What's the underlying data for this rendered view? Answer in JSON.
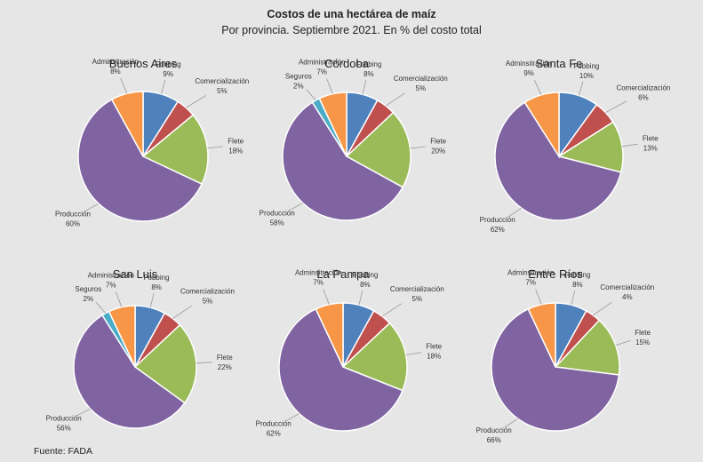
{
  "header": {
    "title": "Costos de una hectárea de maíz",
    "subtitle": "Por provincia. Septiembre 2021. En % del costo total"
  },
  "footer": {
    "source": "Fuente: FADA"
  },
  "colors": {
    "Fobbing": "#4F81BD",
    "Comercialización": "#C0504D",
    "Flete": "#9BBB59",
    "Producción": "#8064A2",
    "Seguros": "#4BACC6",
    "Administración": "#F79646"
  },
  "chart_data": [
    {
      "type": "pie",
      "title": "Buenos Aires",
      "slices": [
        {
          "key": "Fobbing",
          "label": "Fobbing",
          "value": 9
        },
        {
          "key": "Comercialización",
          "label": "Comercialización",
          "value": 5
        },
        {
          "key": "Flete",
          "label": "Flete",
          "value": 18
        },
        {
          "key": "Producción",
          "label": "Producción",
          "value": 60
        },
        {
          "key": "Administración",
          "label": "Adminsitración",
          "value": 8
        }
      ]
    },
    {
      "type": "pie",
      "title": "Córdoba",
      "slices": [
        {
          "key": "Fobbing",
          "label": "Fobbing",
          "value": 8
        },
        {
          "key": "Comercialización",
          "label": "Comercialización",
          "value": 5
        },
        {
          "key": "Flete",
          "label": "Flete",
          "value": 20
        },
        {
          "key": "Producción",
          "label": "Producción",
          "value": 58
        },
        {
          "key": "Seguros",
          "label": "Seguros",
          "value": 2
        },
        {
          "key": "Administración",
          "label": "Administración",
          "value": 7
        }
      ]
    },
    {
      "type": "pie",
      "title": "Santa Fe",
      "slices": [
        {
          "key": "Fobbing",
          "label": "Fobbing",
          "value": 10
        },
        {
          "key": "Comercialización",
          "label": "Comercialización",
          "value": 6
        },
        {
          "key": "Flete",
          "label": "Flete",
          "value": 13
        },
        {
          "key": "Producción",
          "label": "Producción",
          "value": 62
        },
        {
          "key": "Administración",
          "label": "Adminsitración",
          "value": 9
        }
      ]
    },
    {
      "type": "pie",
      "title": "San Luis",
      "slices": [
        {
          "key": "Fobbing",
          "label": "Fobbing",
          "value": 8
        },
        {
          "key": "Comercialización",
          "label": "Comercialización",
          "value": 5
        },
        {
          "key": "Flete",
          "label": "Flete",
          "value": 22
        },
        {
          "key": "Producción",
          "label": "Producción",
          "value": 56
        },
        {
          "key": "Seguros",
          "label": "Seguros",
          "value": 2
        },
        {
          "key": "Administración",
          "label": "Administración",
          "value": 7
        }
      ]
    },
    {
      "type": "pie",
      "title": "La Pampa",
      "slices": [
        {
          "key": "Fobbing",
          "label": "Fobbing",
          "value": 8
        },
        {
          "key": "Comercialización",
          "label": "Comercialización",
          "value": 5
        },
        {
          "key": "Flete",
          "label": "Flete",
          "value": 18
        },
        {
          "key": "Producción",
          "label": "Producción",
          "value": 62
        },
        {
          "key": "Administración",
          "label": "Adminsitración",
          "value": 7
        }
      ]
    },
    {
      "type": "pie",
      "title": "Entre Ríos",
      "slices": [
        {
          "key": "Fobbing",
          "label": "Fobbing",
          "value": 8
        },
        {
          "key": "Comercialización",
          "label": "Comercialización",
          "value": 4
        },
        {
          "key": "Flete",
          "label": "Flete",
          "value": 15
        },
        {
          "key": "Producción",
          "label": "Producción",
          "value": 66
        },
        {
          "key": "Administración",
          "label": "Adminsitración",
          "value": 7
        }
      ]
    }
  ]
}
